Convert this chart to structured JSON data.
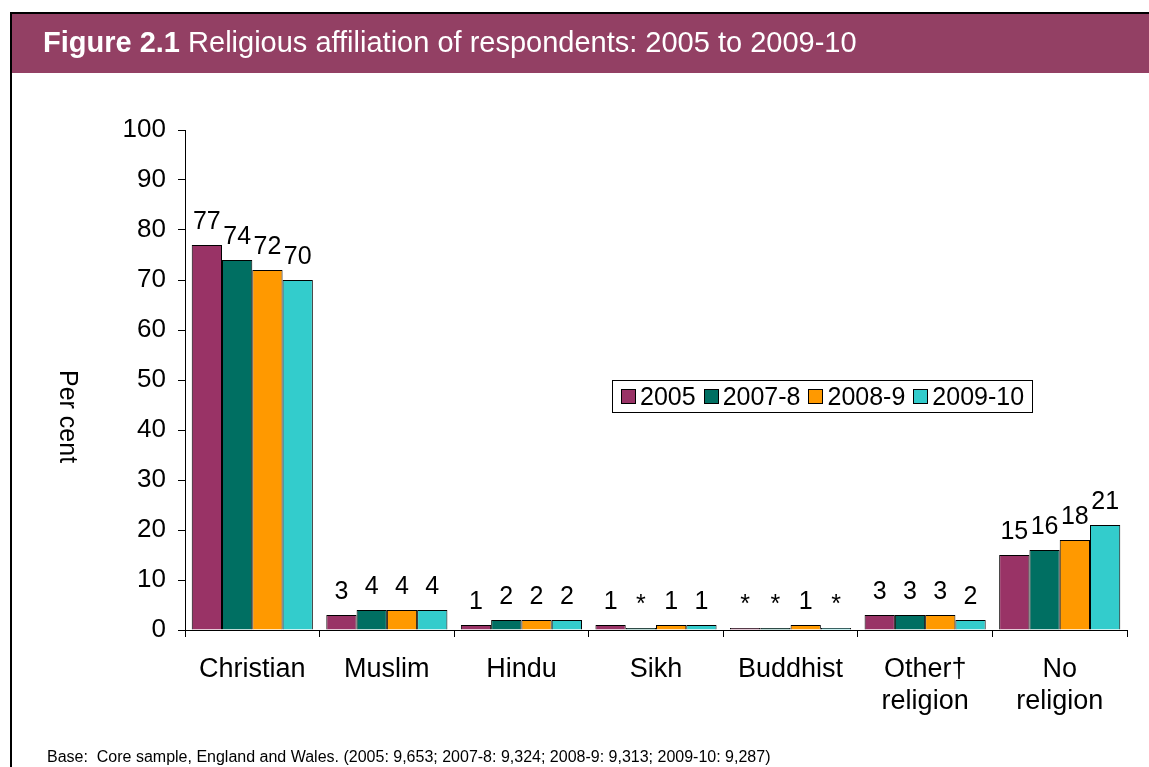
{
  "chart_data": {
    "type": "bar",
    "title": "Figure 2.1 Religious affiliation of respondents: 2005 to 2009-10",
    "ylabel": "Per cent",
    "categories": [
      "Christian",
      "Muslim",
      "Hindu",
      "Sikh",
      "Buddhist",
      "Other† religion",
      "No religion"
    ],
    "series": [
      {
        "name": "2005",
        "color": "#993366",
        "values": [
          77,
          3,
          1,
          1,
          0.4,
          3,
          15
        ],
        "value_labels": [
          "77",
          "3",
          "1",
          "1",
          "*",
          "3",
          "15"
        ]
      },
      {
        "name": "2007-8",
        "color": "#006f62",
        "values": [
          74,
          4,
          2,
          0.4,
          0.4,
          3,
          16
        ],
        "value_labels": [
          "74",
          "4",
          "2",
          "*",
          "*",
          "3",
          "16"
        ]
      },
      {
        "name": "2008-9",
        "color": "#ff9900",
        "values": [
          72,
          4,
          2,
          1,
          1,
          3,
          18
        ],
        "value_labels": [
          "72",
          "4",
          "2",
          "1",
          "1",
          "3",
          "18"
        ]
      },
      {
        "name": "2009-10",
        "color": "#33cccc",
        "values": [
          70,
          4,
          2,
          1,
          0.4,
          2,
          21
        ],
        "value_labels": [
          "70",
          "4",
          "2",
          "1",
          "*",
          "2",
          "21"
        ]
      }
    ],
    "ylim": [
      0,
      100
    ],
    "yticks": [
      0,
      10,
      20,
      30,
      40,
      50,
      60,
      70,
      80,
      90,
      100
    ],
    "legend": "right",
    "annotations": [
      "Base:  Core sample, England and Wales. (2005: 9,653; 2007-8: 9,324; 2008-9: 9,313; 2009-10: 9,287)"
    ]
  }
}
